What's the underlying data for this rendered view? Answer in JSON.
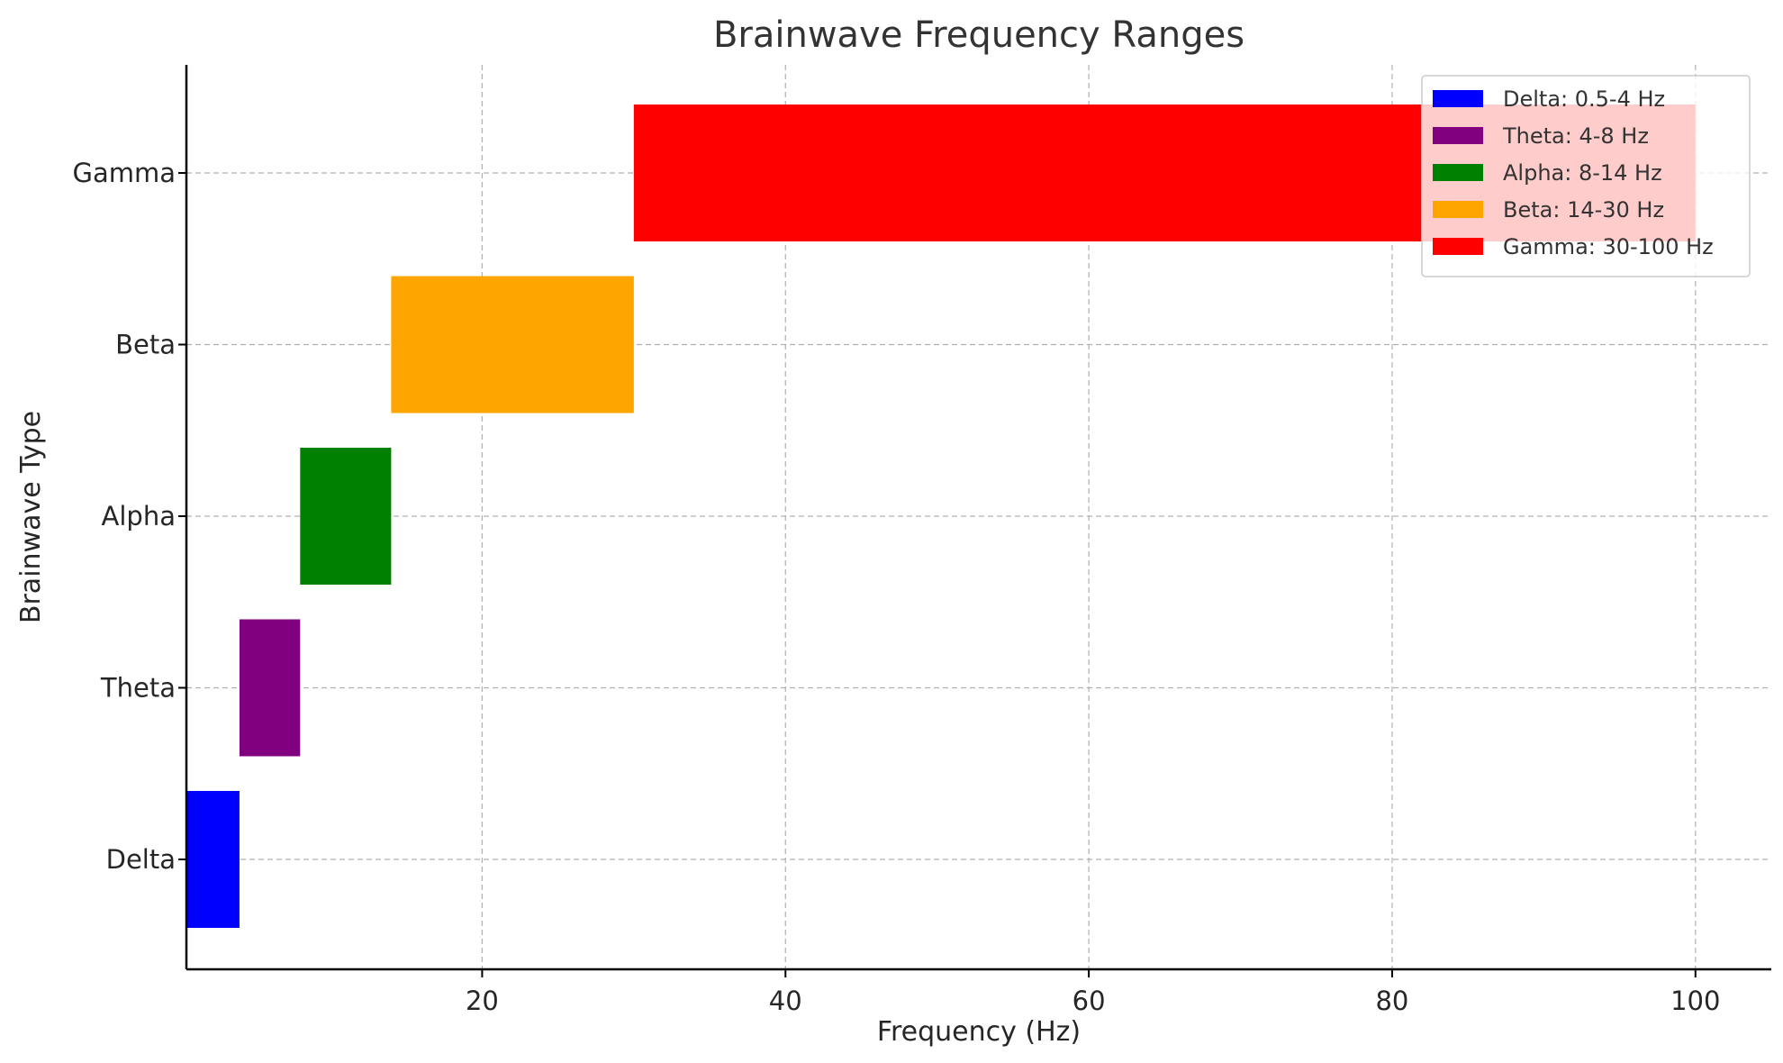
{
  "chart_data": {
    "type": "bar",
    "orientation": "horizontal",
    "title": "Brainwave Frequency Ranges",
    "xlabel": "Frequency (Hz)",
    "ylabel": "Brainwave Type",
    "xlim": [
      0.5,
      105
    ],
    "xticks": [
      20,
      40,
      60,
      80,
      100
    ],
    "grid": true,
    "legend_position": "top-right",
    "categories": [
      "Delta",
      "Theta",
      "Alpha",
      "Beta",
      "Gamma"
    ],
    "series": [
      {
        "name": "Delta: 0.5-4 Hz",
        "category": "Delta",
        "start": 0.5,
        "end": 4,
        "color": "#0000ff"
      },
      {
        "name": "Theta: 4-8 Hz",
        "category": "Theta",
        "start": 4,
        "end": 8,
        "color": "#800080"
      },
      {
        "name": "Alpha: 8-14 Hz",
        "category": "Alpha",
        "start": 8,
        "end": 14,
        "color": "#008000"
      },
      {
        "name": "Beta: 14-30 Hz",
        "category": "Beta",
        "start": 14,
        "end": 30,
        "color": "#ffa500"
      },
      {
        "name": "Gamma: 30-100 Hz",
        "category": "Gamma",
        "start": 30,
        "end": 100,
        "color": "#ff0000"
      }
    ]
  }
}
